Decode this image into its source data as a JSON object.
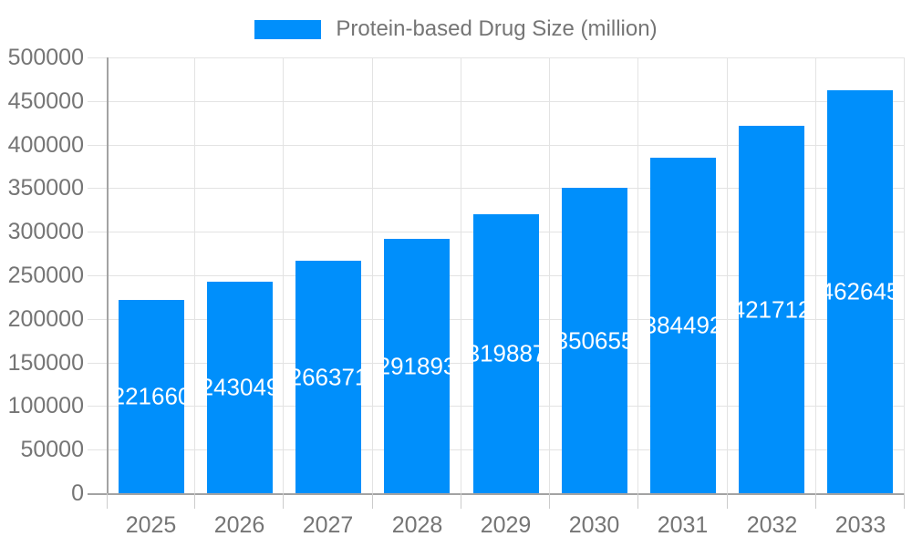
{
  "legend": {
    "label": "Protein-based Drug Size (million)"
  },
  "chart_data": {
    "type": "bar",
    "title": "Protein-based Drug Size (million)",
    "categories": [
      "2025",
      "2026",
      "2027",
      "2028",
      "2029",
      "2030",
      "2031",
      "2032",
      "2033"
    ],
    "series": [
      {
        "name": "Protein-based Drug Size (million)",
        "values": [
          221660,
          243049,
          266371,
          291893,
          319887,
          350655,
          384492,
          421712,
          462645
        ]
      }
    ],
    "xlabel": "",
    "ylabel": "",
    "ylim": [
      0,
      500000
    ],
    "ytick_step": 50000,
    "ytick_labels": [
      "0",
      "50000",
      "100000",
      "150000",
      "200000",
      "250000",
      "300000",
      "350000",
      "400000",
      "450000",
      "500000"
    ],
    "grid": true,
    "legend_position": "top-center",
    "value_labels": "inside-center-white",
    "colors": {
      "bar": "#008FFB",
      "axis_text": "#757575",
      "legend_text": "#757575",
      "data_label": "#ffffff",
      "gridline": "#e3e3e3",
      "tick": "#cccccc",
      "axis_line": "#a3a3a3"
    }
  }
}
